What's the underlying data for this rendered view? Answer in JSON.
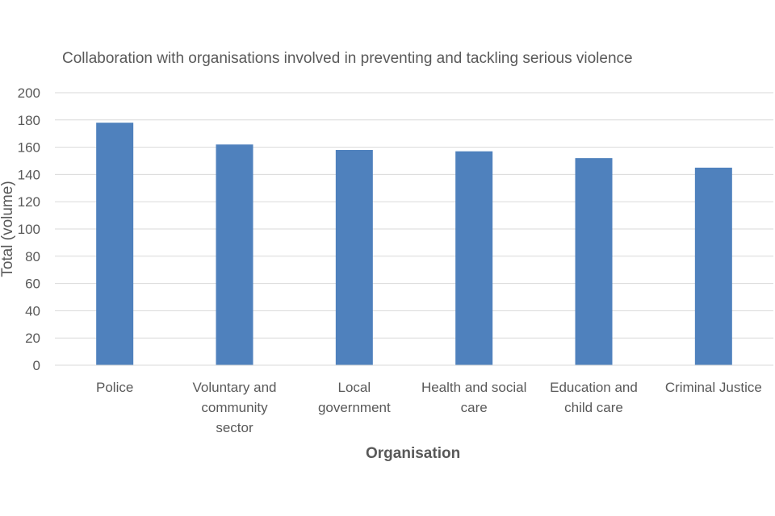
{
  "chart_data": {
    "type": "bar",
    "title": "Collaboration with organisations involved in preventing and tackling serious violence",
    "xlabel": "Organisation",
    "ylabel": "Total (volume)",
    "categories": [
      "Police",
      "Voluntary and community sector",
      "Local government",
      "Health and social care",
      "Education and child care",
      "Criminal Justice"
    ],
    "category_lines": [
      [
        "Police"
      ],
      [
        "Voluntary and",
        "community",
        "sector"
      ],
      [
        "Local",
        "government"
      ],
      [
        "Health and social",
        "care"
      ],
      [
        "Education and",
        "child care"
      ],
      [
        "Criminal Justice"
      ]
    ],
    "values": [
      178,
      162,
      158,
      157,
      152,
      145
    ],
    "ylim": [
      0,
      200
    ],
    "yticks": [
      0,
      20,
      40,
      60,
      80,
      100,
      120,
      140,
      160,
      180,
      200
    ],
    "grid": true,
    "legend": "none",
    "colors": {
      "bar": "#4f81bd",
      "grid": "#d9d9d9",
      "axis": "#d9d9d9",
      "text": "#595959"
    }
  }
}
